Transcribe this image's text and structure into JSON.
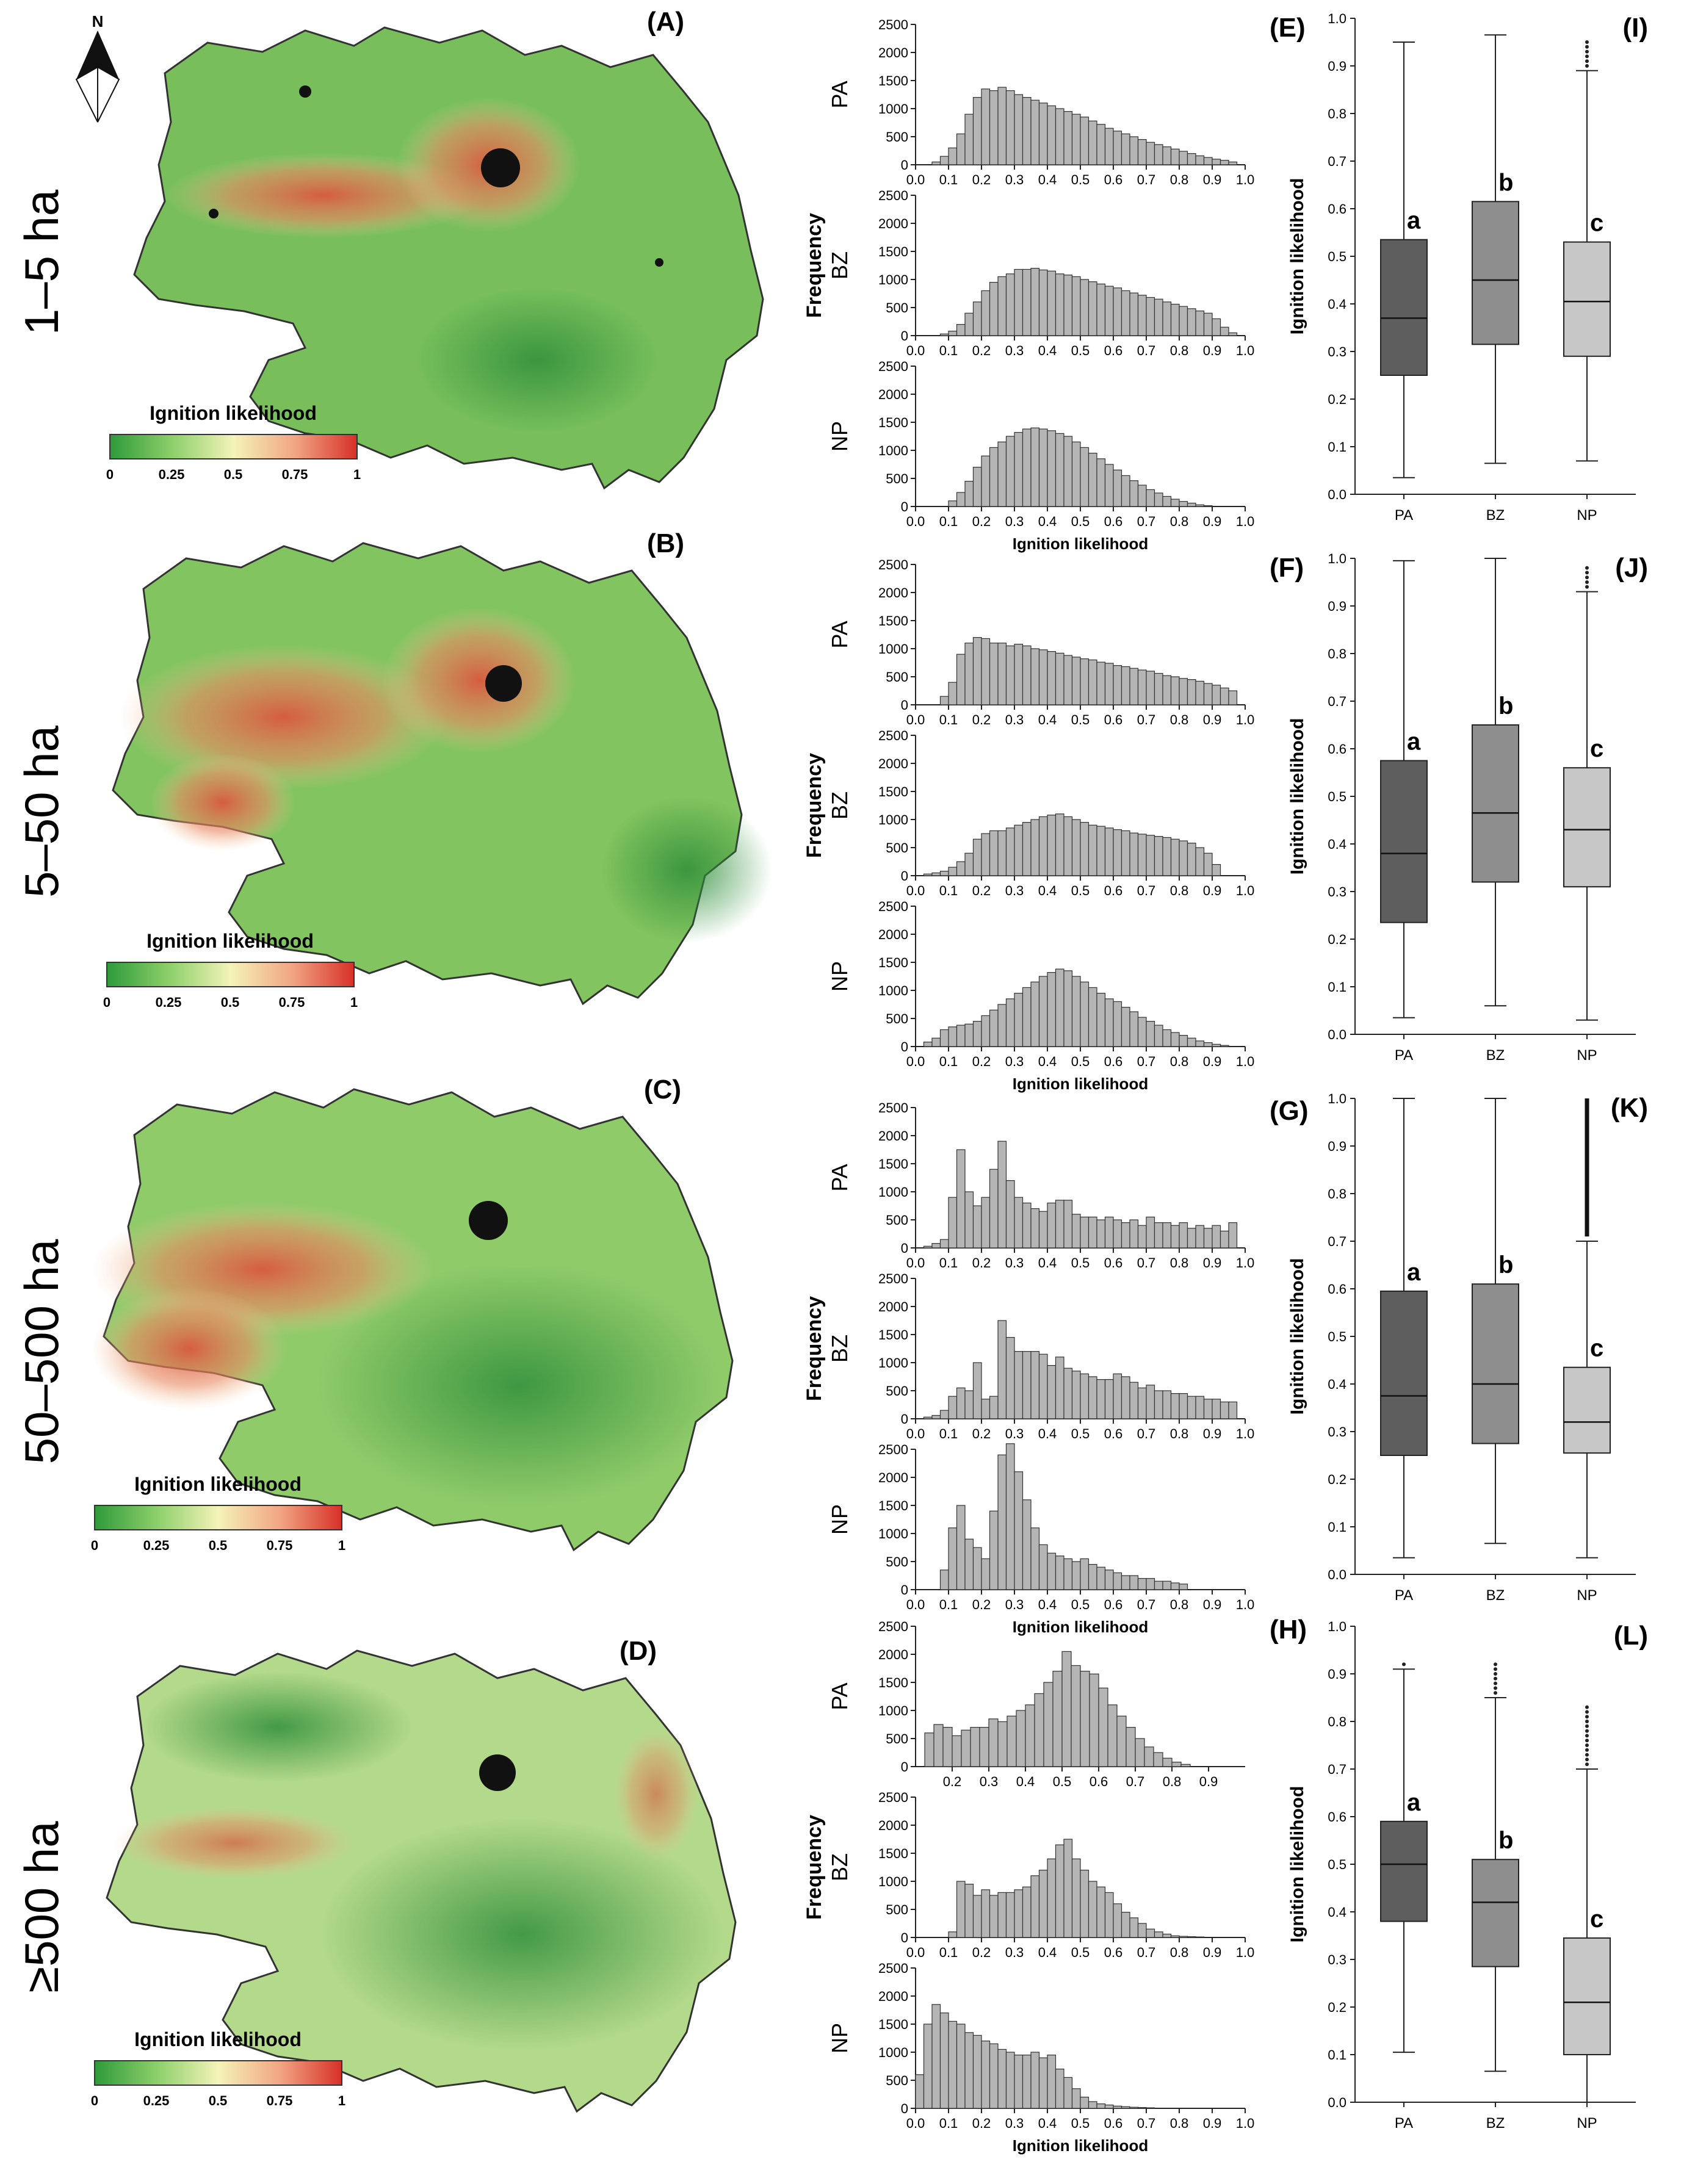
{
  "figure": {
    "north_label": "N",
    "rows": [
      {
        "id": "r1",
        "size_label": "1–5 ha",
        "panels": {
          "map": "(A)",
          "hist": "(E)",
          "box": "(I)"
        }
      },
      {
        "id": "r2",
        "size_label": "5–50 ha",
        "panels": {
          "map": "(B)",
          "hist": "(F)",
          "box": "(J)"
        }
      },
      {
        "id": "r3",
        "size_label": "50–500 ha",
        "panels": {
          "map": "(C)",
          "hist": "(G)",
          "box": "(K)"
        }
      },
      {
        "id": "r4",
        "size_label": "≥500 ha",
        "panels": {
          "map": "(D)",
          "hist": "(H)",
          "box": "(L)"
        }
      }
    ],
    "legend": {
      "title": "Ignition likelihood",
      "ticks": [
        "0",
        "0.25",
        "0.5",
        "0.75",
        "1"
      ],
      "colors": [
        "#2e9a3a",
        "#8ccf6a",
        "#f4f3b8",
        "#f2a583",
        "#d73027"
      ]
    },
    "map_colors": {
      "low": "#5cae4d",
      "mid": "#c9e29a",
      "high": "#d9573e",
      "urban": "#111111"
    }
  },
  "chart_data": [
    {
      "type": "bar",
      "name": "histograms (E)",
      "panel_label": "(E)",
      "ylabel": "Frequency",
      "xlabel": "Ignition likelihood",
      "ylim": [
        0,
        2500
      ],
      "xlim": [
        0,
        1.0
      ],
      "y_ticks": [
        "0",
        "500",
        "1000",
        "1500",
        "2000",
        "2500"
      ],
      "x_ticks": [
        "0.0",
        "0.1",
        "0.2",
        "0.3",
        "0.4",
        "0.5",
        "0.6",
        "0.7",
        "0.8",
        "0.9",
        "1.0"
      ],
      "bin_width": 0.025,
      "series": [
        {
          "name": "PA",
          "bin_start": 0.05,
          "values": [
            50,
            150,
            300,
            550,
            900,
            1200,
            1350,
            1320,
            1380,
            1320,
            1250,
            1200,
            1150,
            1100,
            1050,
            1000,
            950,
            900,
            850,
            780,
            720,
            650,
            600,
            550,
            500,
            450,
            400,
            360,
            320,
            280,
            240,
            200,
            160,
            130,
            100,
            80,
            50
          ]
        },
        {
          "name": "BZ",
          "bin_start": 0.075,
          "values": [
            30,
            80,
            200,
            400,
            600,
            800,
            950,
            1050,
            1100,
            1180,
            1180,
            1200,
            1170,
            1150,
            1100,
            1080,
            1050,
            1000,
            960,
            920,
            880,
            850,
            800,
            760,
            720,
            680,
            650,
            600,
            560,
            520,
            480,
            440,
            400,
            300,
            150,
            50
          ]
        },
        {
          "name": "NP",
          "bin_start": 0.1,
          "values": [
            100,
            250,
            450,
            700,
            900,
            1050,
            1150,
            1250,
            1320,
            1380,
            1400,
            1380,
            1350,
            1300,
            1250,
            1150,
            1050,
            950,
            850,
            750,
            650,
            550,
            460,
            380,
            300,
            240,
            180,
            130,
            90,
            60,
            30,
            15
          ]
        }
      ]
    },
    {
      "type": "bar",
      "name": "histograms (F)",
      "panel_label": "(F)",
      "ylabel": "Frequency",
      "xlabel": "Ignition likelihood",
      "ylim": [
        0,
        2500
      ],
      "xlim": [
        0,
        1.0
      ],
      "y_ticks": [
        "0",
        "500",
        "1000",
        "1500",
        "2000",
        "2500"
      ],
      "x_ticks": [
        "0.0",
        "0.1",
        "0.2",
        "0.3",
        "0.4",
        "0.5",
        "0.6",
        "0.7",
        "0.8",
        "0.9",
        "1.0"
      ],
      "bin_width": 0.025,
      "series": [
        {
          "name": "PA",
          "bin_start": 0.075,
          "values": [
            150,
            400,
            900,
            1100,
            1200,
            1180,
            1100,
            1100,
            1050,
            1080,
            1050,
            1000,
            980,
            950,
            920,
            880,
            850,
            820,
            800,
            760,
            740,
            700,
            680,
            650,
            620,
            600,
            560,
            520,
            500,
            470,
            450,
            420,
            380,
            350,
            300,
            250
          ]
        },
        {
          "name": "BZ",
          "bin_start": 0.025,
          "values": [
            30,
            50,
            80,
            150,
            250,
            400,
            650,
            750,
            800,
            800,
            850,
            900,
            950,
            1000,
            1050,
            1080,
            1100,
            1050,
            1000,
            950,
            900,
            880,
            850,
            820,
            800,
            760,
            740,
            720,
            700,
            680,
            650,
            620,
            580,
            500,
            400,
            200
          ]
        },
        {
          "name": "NP",
          "bin_start": 0.025,
          "values": [
            80,
            150,
            300,
            350,
            380,
            400,
            450,
            550,
            650,
            750,
            850,
            950,
            1050,
            1150,
            1250,
            1320,
            1380,
            1350,
            1250,
            1150,
            1050,
            950,
            850,
            800,
            700,
            620,
            520,
            450,
            380,
            300,
            250,
            200,
            150,
            100,
            70,
            40,
            20
          ]
        }
      ]
    },
    {
      "type": "bar",
      "name": "histograms (G)",
      "panel_label": "(G)",
      "ylabel": "Frequency",
      "xlabel": "Ignition likelihood",
      "ylim": [
        0,
        2500
      ],
      "xlim": [
        0,
        1.0
      ],
      "y_ticks": [
        "0",
        "500",
        "1000",
        "1500",
        "2000",
        "2500"
      ],
      "x_ticks": [
        "0.0",
        "0.1",
        "0.2",
        "0.3",
        "0.4",
        "0.5",
        "0.6",
        "0.7",
        "0.8",
        "0.9",
        "1.0"
      ],
      "bin_width": 0.025,
      "series": [
        {
          "name": "PA",
          "bin_start": 0.025,
          "values": [
            30,
            80,
            150,
            900,
            1750,
            1000,
            750,
            900,
            1400,
            1900,
            1200,
            900,
            800,
            700,
            650,
            800,
            850,
            850,
            600,
            550,
            550,
            500,
            550,
            500,
            450,
            500,
            400,
            550,
            450,
            450,
            400,
            450,
            350,
            400,
            350,
            400,
            300,
            450
          ]
        },
        {
          "name": "BZ",
          "bin_start": 0.025,
          "values": [
            30,
            60,
            150,
            400,
            550,
            500,
            1000,
            350,
            400,
            1750,
            1450,
            1200,
            1200,
            1200,
            1150,
            950,
            1100,
            900,
            850,
            800,
            750,
            700,
            700,
            800,
            750,
            650,
            550,
            600,
            500,
            500,
            450,
            450,
            400,
            400,
            350,
            350,
            300,
            300
          ]
        },
        {
          "name": "NP",
          "bin_start": 0.075,
          "values": [
            350,
            1100,
            1500,
            900,
            750,
            550,
            1400,
            2400,
            2600,
            2100,
            1600,
            1100,
            800,
            650,
            600,
            550,
            500,
            550,
            450,
            400,
            350,
            300,
            250,
            250,
            200,
            200,
            150,
            150,
            120,
            100
          ]
        }
      ]
    },
    {
      "type": "bar",
      "name": "histograms (H)",
      "panel_label": "(H)",
      "ylabel": "Frequency",
      "xlabel": "Ignition likelihood",
      "ylim": [
        0,
        2500
      ],
      "xlim_pa": [
        0.1,
        1.0
      ],
      "x_ticks_pa": [
        "0.2",
        "0.3",
        "0.4",
        "0.5",
        "0.6",
        "0.7",
        "0.8",
        "0.9"
      ],
      "xlim": [
        0,
        1.0
      ],
      "y_ticks": [
        "0",
        "500",
        "1000",
        "1500",
        "2000",
        "2500"
      ],
      "x_ticks": [
        "0.0",
        "0.1",
        "0.2",
        "0.3",
        "0.4",
        "0.5",
        "0.6",
        "0.7",
        "0.8",
        "0.9",
        "1.0"
      ],
      "bin_width": 0.025,
      "series": [
        {
          "name": "PA",
          "bin_start": 0.125,
          "values": [
            600,
            750,
            700,
            550,
            650,
            700,
            700,
            850,
            800,
            900,
            1000,
            1100,
            1300,
            1500,
            1700,
            2050,
            1800,
            1700,
            1650,
            1400,
            1100,
            900,
            700,
            500,
            350,
            250,
            150,
            80,
            40
          ]
        },
        {
          "name": "BZ",
          "bin_start": 0.1,
          "values": [
            100,
            1000,
            950,
            750,
            850,
            750,
            800,
            800,
            850,
            900,
            1100,
            1200,
            1400,
            1650,
            1750,
            1400,
            1200,
            1000,
            900,
            800,
            600,
            450,
            350,
            250,
            150,
            100,
            60,
            30,
            20,
            15,
            10
          ]
        },
        {
          "name": "NP",
          "bin_start": 0.0,
          "values": [
            600,
            1500,
            1850,
            1700,
            1550,
            1500,
            1350,
            1300,
            1200,
            1150,
            1050,
            1000,
            950,
            950,
            1000,
            900,
            950,
            700,
            550,
            350,
            200,
            120,
            80,
            60,
            40,
            30,
            20,
            15,
            10
          ]
        }
      ]
    },
    {
      "type": "box",
      "name": "boxplot (I)",
      "panel_label": "(I)",
      "ylabel": "Ignition likelihood",
      "ylim": [
        0,
        1.0
      ],
      "y_ticks": [
        "0.0",
        "0.1",
        "0.2",
        "0.3",
        "0.4",
        "0.5",
        "0.6",
        "0.7",
        "0.8",
        "0.9",
        "1.0"
      ],
      "categories": [
        "PA",
        "BZ",
        "NP"
      ],
      "boxes": [
        {
          "name": "PA",
          "whisker_low": 0.035,
          "q1": 0.25,
          "median": 0.37,
          "q3": 0.535,
          "whisker_high": 0.95,
          "letter": "a"
        },
        {
          "name": "BZ",
          "whisker_low": 0.065,
          "q1": 0.315,
          "median": 0.45,
          "q3": 0.615,
          "whisker_high": 0.965,
          "letter": "b"
        },
        {
          "name": "NP",
          "whisker_low": 0.07,
          "q1": 0.29,
          "median": 0.405,
          "q3": 0.53,
          "whisker_high": 0.89,
          "outliers": [
            0.9,
            0.91,
            0.92,
            0.93,
            0.94,
            0.95
          ],
          "letter": "c"
        }
      ]
    },
    {
      "type": "box",
      "name": "boxplot (J)",
      "panel_label": "(J)",
      "ylabel": "Ignition likelihood",
      "ylim": [
        0,
        1.0
      ],
      "y_ticks": [
        "0.0",
        "0.1",
        "0.2",
        "0.3",
        "0.4",
        "0.5",
        "0.6",
        "0.7",
        "0.8",
        "0.9",
        "1.0"
      ],
      "categories": [
        "PA",
        "BZ",
        "NP"
      ],
      "boxes": [
        {
          "name": "PA",
          "whisker_low": 0.035,
          "q1": 0.235,
          "median": 0.38,
          "q3": 0.575,
          "whisker_high": 0.995,
          "letter": "a"
        },
        {
          "name": "BZ",
          "whisker_low": 0.06,
          "q1": 0.32,
          "median": 0.465,
          "q3": 0.65,
          "whisker_high": 1.0,
          "letter": "b"
        },
        {
          "name": "NP",
          "whisker_low": 0.03,
          "q1": 0.31,
          "median": 0.43,
          "q3": 0.56,
          "whisker_high": 0.93,
          "outliers": [
            0.94,
            0.95,
            0.96,
            0.97,
            0.98
          ],
          "letter": "c"
        }
      ]
    },
    {
      "type": "box",
      "name": "boxplot (K)",
      "panel_label": "(K)",
      "ylabel": "Ignition likelihood",
      "ylim": [
        0,
        1.0
      ],
      "y_ticks": [
        "0.0",
        "0.1",
        "0.2",
        "0.3",
        "0.4",
        "0.5",
        "0.6",
        "0.7",
        "0.8",
        "0.9",
        "1.0"
      ],
      "categories": [
        "PA",
        "BZ",
        "NP"
      ],
      "boxes": [
        {
          "name": "PA",
          "whisker_low": 0.035,
          "q1": 0.25,
          "median": 0.375,
          "q3": 0.595,
          "whisker_high": 1.0,
          "letter": "a"
        },
        {
          "name": "BZ",
          "whisker_low": 0.065,
          "q1": 0.275,
          "median": 0.4,
          "q3": 0.61,
          "whisker_high": 1.0,
          "letter": "b"
        },
        {
          "name": "NP",
          "whisker_low": 0.035,
          "q1": 0.255,
          "median": 0.32,
          "q3": 0.435,
          "whisker_high": 0.7,
          "outliers_range": [
            0.71,
            1.0
          ],
          "letter": "c"
        }
      ]
    },
    {
      "type": "box",
      "name": "boxplot (L)",
      "panel_label": "(L)",
      "ylabel": "Ignition likelihood",
      "ylim": [
        0,
        1.0
      ],
      "y_ticks": [
        "0.0",
        "0.1",
        "0.2",
        "0.3",
        "0.4",
        "0.5",
        "0.6",
        "0.7",
        "0.8",
        "0.9",
        "1.0"
      ],
      "categories": [
        "PA",
        "BZ",
        "NP"
      ],
      "boxes": [
        {
          "name": "PA",
          "whisker_low": 0.105,
          "q1": 0.38,
          "median": 0.5,
          "q3": 0.59,
          "whisker_high": 0.91,
          "outliers": [
            0.92
          ],
          "letter": "a"
        },
        {
          "name": "BZ",
          "whisker_low": 0.065,
          "q1": 0.285,
          "median": 0.42,
          "q3": 0.51,
          "whisker_high": 0.85,
          "outliers": [
            0.86,
            0.87,
            0.88,
            0.89,
            0.9,
            0.91,
            0.92
          ],
          "letter": "b"
        },
        {
          "name": "NP",
          "whisker_low": 0.0,
          "q1": 0.1,
          "median": 0.21,
          "q3": 0.345,
          "whisker_high": 0.7,
          "outliers": [
            0.71,
            0.72,
            0.73,
            0.74,
            0.75,
            0.76,
            0.77,
            0.78,
            0.79,
            0.8,
            0.81,
            0.82,
            0.83
          ],
          "letter": "c"
        }
      ]
    }
  ]
}
